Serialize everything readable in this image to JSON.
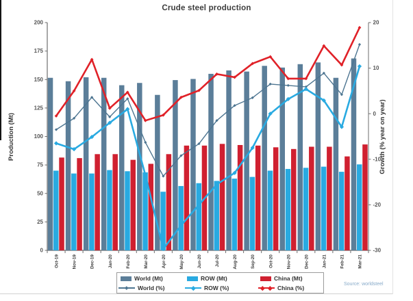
{
  "title": "Crude steel production",
  "source": "Source: worldsteel",
  "colors": {
    "world_bar": "#5b7e99",
    "row_bar": "#29aae1",
    "china_bar": "#d02030",
    "world_line": "#4d7591",
    "row_line": "#29aae1",
    "china_line": "#e02128",
    "axis_text": "#555555",
    "x_label_text": "#3a3a3a",
    "title_text": "#3c3c3c",
    "legend_border": "#9b9b9b",
    "source_text": "#87aac9"
  },
  "chart_data": {
    "type": "combo-bar-line",
    "title": "Crude steel production",
    "categories": [
      "Oct-19",
      "Nov-19",
      "Dec-19",
      "Jan-20",
      "Feb-20",
      "Mar-20",
      "Apr-20",
      "May-20",
      "Jun-20",
      "Jul-20",
      "Aug-20",
      "Sep-20",
      "Oct-20",
      "Nov-20",
      "Dec-20",
      "Jan-21",
      "Feb-21",
      "Mar-21"
    ],
    "series": [
      {
        "name": "World (Mt)",
        "type": "bar",
        "axis": "left",
        "color": "#5b7e99",
        "values": [
          151.5,
          148.5,
          152,
          151.5,
          145,
          147,
          136.5,
          149.5,
          150.5,
          155,
          158,
          157,
          162,
          160.5,
          163.5,
          165,
          151.5,
          168.5
        ]
      },
      {
        "name": "ROW (Mt)",
        "type": "bar",
        "axis": "left",
        "color": "#29aae1",
        "values": [
          70,
          67.5,
          67.5,
          70.5,
          69.5,
          68.5,
          51.5,
          56.5,
          59,
          61,
          63,
          64.5,
          70,
          71.5,
          72.5,
          73.5,
          69,
          75.5
        ]
      },
      {
        "name": "China (Mt)",
        "type": "bar",
        "axis": "left",
        "color": "#d02030",
        "values": [
          81.5,
          81,
          84.5,
          84.5,
          79.5,
          76,
          84.5,
          92,
          92,
          93.5,
          92.5,
          92,
          90.5,
          89,
          91,
          91,
          82.5,
          93
        ]
      },
      {
        "name": "World (%)",
        "type": "line",
        "axis": "right",
        "color": "#4d7591",
        "width": 1.4,
        "marker": 3,
        "values": [
          -3.5,
          -1,
          3.6,
          -0.7,
          3.3,
          -6.3,
          -13.7,
          -9.2,
          -6.6,
          -1.5,
          1.8,
          3.5,
          6.5,
          6.2,
          5.9,
          8.9,
          4.2,
          15.2
        ]
      },
      {
        "name": "ROW (%)",
        "type": "line",
        "axis": "right",
        "color": "#29aae1",
        "width": 2.6,
        "marker": 4.4,
        "values": [
          -6.5,
          -7.8,
          -5.1,
          -2,
          1,
          -13.5,
          -29.7,
          -24.5,
          -20,
          -15.5,
          -13,
          -7.5,
          0,
          3.2,
          5.4,
          2.9,
          -2.9,
          10.4
        ]
      },
      {
        "name": "China (%)",
        "type": "line",
        "axis": "right",
        "color": "#e02128",
        "width": 2.6,
        "marker": 3.4,
        "values": [
          -0.5,
          5,
          11.9,
          1.2,
          4.7,
          -1.5,
          -0.3,
          3.6,
          5.1,
          8.7,
          8,
          11,
          12.5,
          7.7,
          7.7,
          14.9,
          10.7,
          18.9
        ]
      }
    ],
    "left_axis": {
      "title": "Production (Mt)",
      "min": 0,
      "max": 200,
      "step": 25,
      "ticks": [
        0,
        25,
        50,
        75,
        100,
        125,
        150,
        175,
        200
      ]
    },
    "right_axis": {
      "title": "Growth (% year on year)",
      "min": -30,
      "max": 20,
      "step": 10,
      "ticks": [
        -30,
        -20,
        -10,
        0,
        10,
        20
      ]
    },
    "legend_position": "bottom",
    "grid": false
  }
}
